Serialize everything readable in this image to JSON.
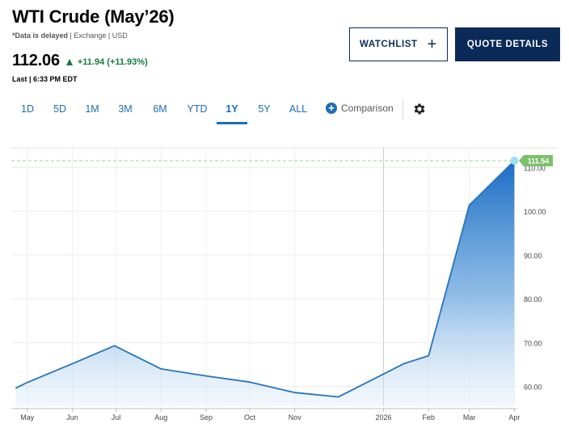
{
  "header": {
    "title": "WTI Crude (May’26)",
    "subtitle_delayed": "*Data is delayed",
    "subtitle_rest": " | Exchange | USD",
    "price": "112.06",
    "change": "+11.94 (+11.93%)",
    "last_updated": "Last | 6:33 PM EDT"
  },
  "actions": {
    "watchlist_label": "WATCHLIST",
    "quote_details_label": "QUOTE DETAILS"
  },
  "tabs": [
    {
      "label": "1D"
    },
    {
      "label": "5D"
    },
    {
      "label": "1M"
    },
    {
      "label": "3M"
    },
    {
      "label": "6M"
    },
    {
      "label": "YTD"
    },
    {
      "label": "1Y"
    },
    {
      "label": "5Y"
    },
    {
      "label": "ALL"
    }
  ],
  "active_tab": "1Y",
  "comparison_label": "Comparison",
  "icons": [
    "up-triangle-icon",
    "plus-icon",
    "plus-circle-icon",
    "gear-icon"
  ],
  "colors": {
    "brand_navy": "#0c2a57",
    "link_blue": "#1e6db5",
    "positive_green": "#137a3e",
    "line_blue": "#2874b8",
    "last_price_tag": "#7cbf6a"
  },
  "chart_data": {
    "type": "area",
    "x_tick_labels": [
      "May",
      "Jun",
      "Jul",
      "Aug",
      "Sep",
      "Oct",
      "Nov",
      "2026",
      "Feb",
      "Mar",
      "Apr"
    ],
    "y_tick_labels": [
      "60.00",
      "70.00",
      "80.00",
      "90.00",
      "100.00",
      "110.00"
    ],
    "ylim": [
      55.5,
      114.5
    ],
    "y_ticks": [
      60,
      70,
      80,
      90,
      100,
      110
    ],
    "x": [
      "2025-04-23",
      "2025-05-01",
      "2025-06-01",
      "2025-06-30",
      "2025-08-01",
      "2025-09-01",
      "2025-10-01",
      "2025-11-01",
      "2025-12-01",
      "2026-01-15",
      "2026-02-01",
      "2026-03-01",
      "2026-04-01"
    ],
    "values": [
      59.6,
      60.9,
      65.2,
      69.3,
      64.0,
      62.4,
      61.0,
      58.6,
      57.6,
      65.2,
      67.0,
      101.4,
      111.54
    ],
    "last_value_label": "111.54",
    "grid": true,
    "reference_line": 111.54
  }
}
